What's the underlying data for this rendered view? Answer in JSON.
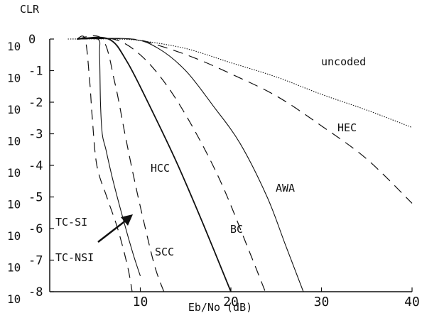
{
  "chart_data": {
    "type": "line",
    "title": "",
    "xlabel": "Eb/No (dB)",
    "ylabel": "CLR",
    "xlim": [
      0,
      40
    ],
    "ylim_exponent": [
      -8,
      0
    ],
    "y_scale": "log10",
    "grid": false,
    "legend": "none (curves labeled inline)",
    "x_ticks": [
      "10",
      "20",
      "30",
      "40"
    ],
    "y_ticks": [
      {
        "base": "10",
        "exp": "0"
      },
      {
        "base": "10",
        "exp": "-1"
      },
      {
        "base": "10",
        "exp": "-2"
      },
      {
        "base": "10",
        "exp": "-3"
      },
      {
        "base": "10",
        "exp": "-4"
      },
      {
        "base": "10",
        "exp": "-5"
      },
      {
        "base": "10",
        "exp": "-6"
      },
      {
        "base": "10",
        "exp": "-7"
      },
      {
        "base": "10",
        "exp": "-8"
      }
    ],
    "series": [
      {
        "id": "uncoded",
        "name": "uncoded",
        "style": "dotted",
        "x": [
          2,
          7,
          10,
          15,
          20,
          25,
          30,
          35,
          40
        ],
        "y": [
          0,
          0,
          -0.05,
          -0.3,
          -0.75,
          -1.2,
          -1.75,
          -2.25,
          -2.8
        ]
      },
      {
        "id": "hec",
        "name": "HEC",
        "style": "dashed",
        "x": [
          3,
          9,
          12,
          16,
          20,
          25,
          30,
          35,
          40
        ],
        "y": [
          0,
          0,
          -0.2,
          -0.6,
          -1.1,
          -1.8,
          -2.75,
          -3.8,
          -5.2
        ]
      },
      {
        "id": "awa",
        "name": "AWA",
        "style": "thin-solid",
        "x": [
          3,
          9,
          12,
          15,
          18,
          21,
          24,
          26,
          28
        ],
        "y": [
          0,
          0,
          -0.3,
          -1.0,
          -2.1,
          -3.3,
          -5.0,
          -6.5,
          -8
        ]
      },
      {
        "id": "bc",
        "name": "BC",
        "style": "dashed",
        "x": [
          3,
          7,
          10,
          13,
          16,
          19,
          22,
          23.8
        ],
        "y": [
          0,
          0,
          -0.5,
          -1.5,
          -2.9,
          -4.6,
          -6.7,
          -8
        ]
      },
      {
        "id": "hcc",
        "name": "HCC",
        "style": "solid",
        "x": [
          3,
          6.5,
          8.5,
          11,
          14,
          17,
          20
        ],
        "y": [
          0,
          0,
          -0.7,
          -2.1,
          -3.9,
          -5.9,
          -8
        ]
      },
      {
        "id": "scc",
        "name": "SCC",
        "style": "dashed",
        "x": [
          3,
          5.8,
          7.2,
          8.3,
          9.3,
          10.4,
          11.6,
          12.6
        ],
        "y": [
          0,
          0,
          -1.4,
          -3.0,
          -4.4,
          -5.8,
          -7.2,
          -8
        ]
      },
      {
        "id": "tcsi",
        "name": "TC-SI",
        "style": "thin-solid",
        "x": [
          3,
          5.3,
          5.5,
          5.6,
          5.8,
          6.2,
          7.0,
          8.2,
          9.2,
          10.0
        ],
        "y": [
          0,
          0,
          -0.5,
          -2.0,
          -3.0,
          -3.5,
          -4.5,
          -5.8,
          -6.8,
          -7.5
        ]
      },
      {
        "id": "tcnsi",
        "name": "TC-NSI",
        "style": "dashed",
        "x": [
          3,
          3.9,
          4.4,
          4.7,
          5.2,
          6.3,
          7.5,
          8.6,
          9.1
        ],
        "y": [
          0,
          0,
          -1.3,
          -2.5,
          -4.0,
          -5.0,
          -6.0,
          -7.2,
          -8
        ]
      }
    ]
  }
}
